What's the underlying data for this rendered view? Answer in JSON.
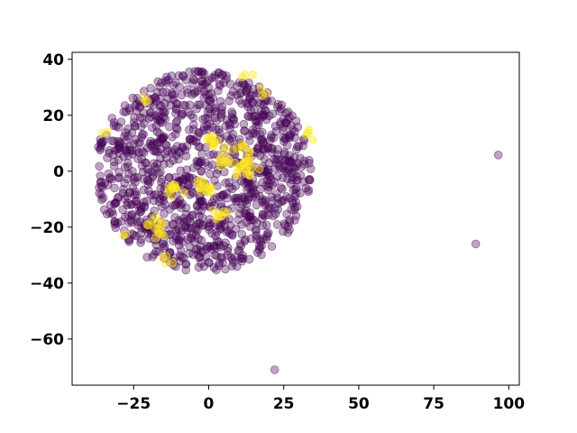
{
  "chart_data": {
    "type": "scatter",
    "title": "",
    "xlabel": "",
    "ylabel": "",
    "xlim": [
      -45.5,
      103.5
    ],
    "ylim": [
      -76.5,
      42.5
    ],
    "xticks": [
      -25,
      0,
      25,
      50,
      75,
      100
    ],
    "yticks": [
      40,
      20,
      0,
      -20,
      -40,
      -60
    ],
    "xtick_labels": [
      "−25",
      "0",
      "25",
      "50",
      "75",
      "100"
    ],
    "ytick_labels": [
      "40",
      "20",
      "0",
      "−20",
      "−40",
      "−60"
    ],
    "grid": false,
    "legend": "none",
    "series": [
      {
        "color": "#440154",
        "alpha": 0.35,
        "cluster": {
          "center": [
            -2,
            0
          ],
          "radius": 36,
          "count": 1150
        },
        "outliers": [
          [
            96.5,
            5.8
          ],
          [
            89,
            -26
          ],
          [
            22,
            -71
          ]
        ]
      },
      {
        "color": "#fde725",
        "alpha": 0.45,
        "clusters": [
          {
            "center": [
              1,
              11
            ],
            "radius": 2.5,
            "count": 12
          },
          {
            "center": [
              9,
              4
            ],
            "radius": 6,
            "count": 28
          },
          {
            "center": [
              14,
              1
            ],
            "radius": 3,
            "count": 10
          },
          {
            "center": [
              -1,
              -5
            ],
            "radius": 3,
            "count": 14
          },
          {
            "center": [
              -11,
              -7
            ],
            "radius": 3,
            "count": 12
          },
          {
            "center": [
              -17,
              -20
            ],
            "radius": 4,
            "count": 14
          },
          {
            "center": [
              -14,
              -32
            ],
            "radius": 3,
            "count": 4
          },
          {
            "center": [
              4,
              -15
            ],
            "radius": 3,
            "count": 8
          },
          {
            "center": [
              -21,
              25
            ],
            "radius": 2,
            "count": 3
          },
          {
            "center": [
              13,
              34
            ],
            "radius": 2,
            "count": 3
          },
          {
            "center": [
              18,
              28
            ],
            "radius": 2,
            "count": 3
          },
          {
            "center": [
              34,
              13
            ],
            "radius": 2,
            "count": 4
          },
          {
            "center": [
              -35,
              14
            ],
            "radius": 2,
            "count": 2
          },
          {
            "center": [
              -28,
              -23
            ],
            "radius": 2,
            "count": 2
          }
        ]
      }
    ]
  }
}
